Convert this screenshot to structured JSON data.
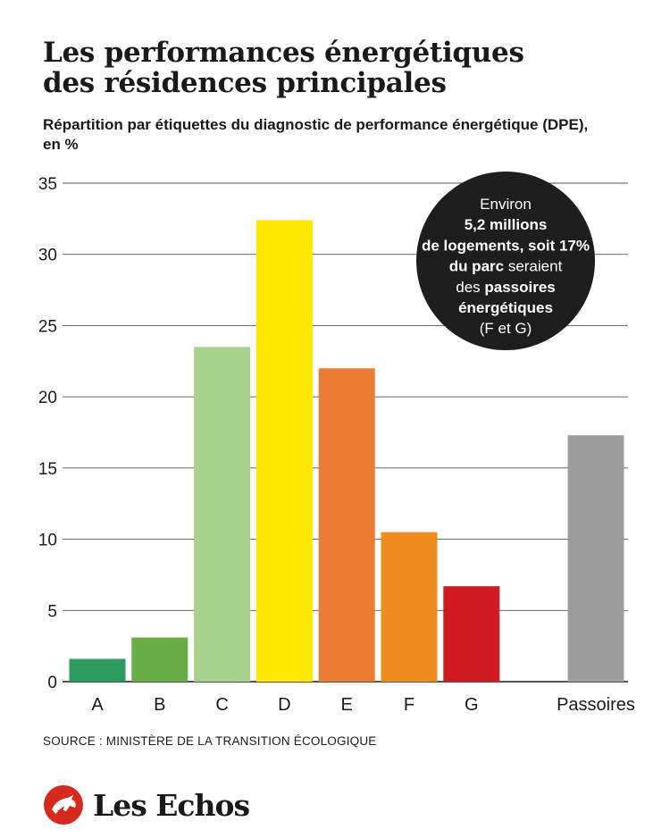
{
  "title_line1": "Les performances énergétiques",
  "title_line2": "des résidences principales",
  "subtitle_line1": "Répartition par étiquettes du diagnostic de performance énergétique (DPE),",
  "subtitle_line2": "en %",
  "source": "SOURCE : MINISTÈRE DE LA TRANSITION ÉCOLOGIQUE",
  "logo_text": "Les Echos",
  "annotation": {
    "lines": [
      {
        "text": "Environ",
        "bold": false
      },
      {
        "text": "5,2 millions",
        "bold": true
      },
      {
        "text": "de logements, soit 17%",
        "bold": true
      },
      {
        "parts": [
          {
            "text": "du parc",
            "bold": true
          },
          {
            "text": " seraient",
            "bold": false
          }
        ]
      },
      {
        "parts": [
          {
            "text": "des ",
            "bold": false
          },
          {
            "text": "passoires",
            "bold": true
          }
        ]
      },
      {
        "text": "énergétiques",
        "bold": true
      },
      {
        "text": "(F et G)",
        "bold": false
      }
    ],
    "background": "#1e1e1e",
    "color": "#ffffff"
  },
  "chart_data": {
    "type": "bar",
    "categories": [
      "A",
      "B",
      "C",
      "D",
      "E",
      "F",
      "G",
      "Passoires"
    ],
    "values": [
      1.6,
      3.1,
      23.5,
      32.4,
      22.0,
      10.5,
      6.7,
      17.3
    ],
    "colors": [
      "#2e9a5e",
      "#6aae47",
      "#a9d18e",
      "#ffe800",
      "#ec7b33",
      "#ed8d1e",
      "#cf1b21",
      "#9d9d9d"
    ],
    "ylim": [
      0,
      35
    ],
    "yticks": [
      "0",
      "5",
      "10",
      "15",
      "20",
      "25",
      "30",
      "35"
    ],
    "xlabel": "",
    "ylabel": "",
    "grid": true
  },
  "colors": {
    "logo_red": "#d52b1e",
    "text": "#1a1a1a"
  }
}
